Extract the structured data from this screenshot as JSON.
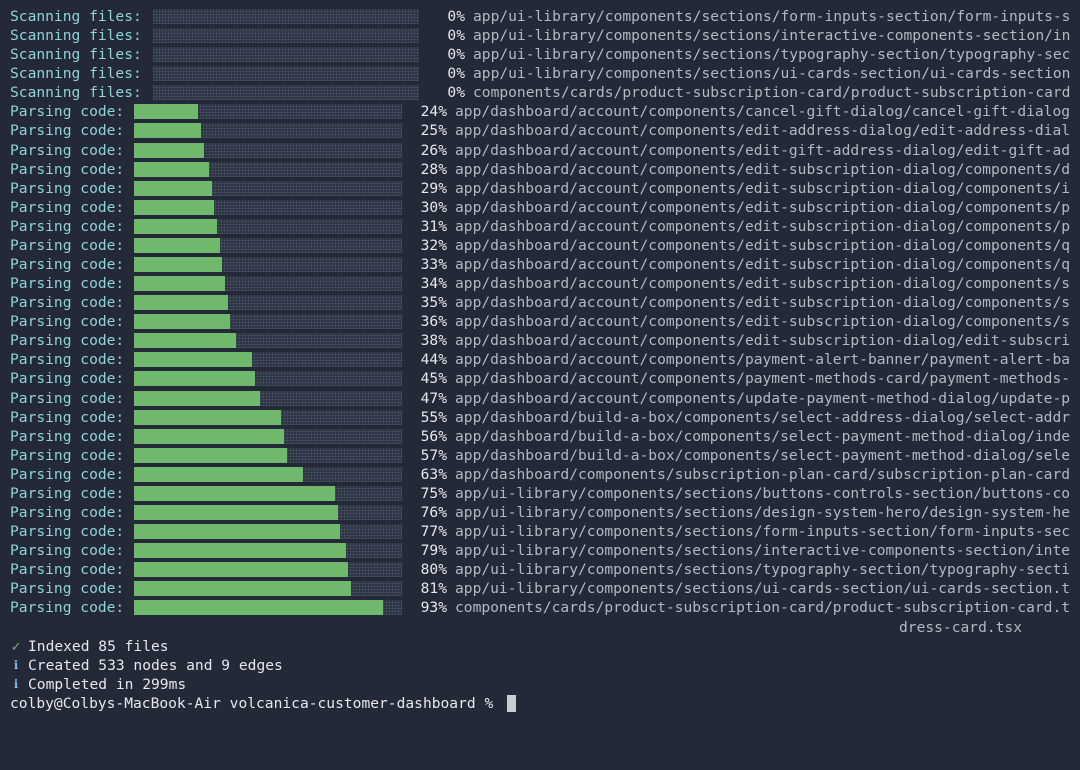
{
  "scan_rows": [
    {
      "label": "Scanning files:",
      "pct": 0,
      "pct_text": "0%",
      "path": "app/ui-library/components/sections/form-inputs-section/form-inputs-s"
    },
    {
      "label": "Scanning files:",
      "pct": 0,
      "pct_text": "0%",
      "path": "app/ui-library/components/sections/interactive-components-section/in"
    },
    {
      "label": "Scanning files:",
      "pct": 0,
      "pct_text": "0%",
      "path": "app/ui-library/components/sections/typography-section/typography-sec"
    },
    {
      "label": "Scanning files:",
      "pct": 0,
      "pct_text": "0%",
      "path": "app/ui-library/components/sections/ui-cards-section/ui-cards-section"
    },
    {
      "label": "Scanning files:",
      "pct": 0,
      "pct_text": "0%",
      "path": "components/cards/product-subscription-card/product-subscription-card"
    }
  ],
  "parse_rows": [
    {
      "label": "Parsing code:",
      "pct": 24,
      "pct_text": "24%",
      "path": "app/dashboard/account/components/cancel-gift-dialog/cancel-gift-dialog"
    },
    {
      "label": "Parsing code:",
      "pct": 25,
      "pct_text": "25%",
      "path": "app/dashboard/account/components/edit-address-dialog/edit-address-dial"
    },
    {
      "label": "Parsing code:",
      "pct": 26,
      "pct_text": "26%",
      "path": "app/dashboard/account/components/edit-gift-address-dialog/edit-gift-ad"
    },
    {
      "label": "Parsing code:",
      "pct": 28,
      "pct_text": "28%",
      "path": "app/dashboard/account/components/edit-subscription-dialog/components/d"
    },
    {
      "label": "Parsing code:",
      "pct": 29,
      "pct_text": "29%",
      "path": "app/dashboard/account/components/edit-subscription-dialog/components/i"
    },
    {
      "label": "Parsing code:",
      "pct": 30,
      "pct_text": "30%",
      "path": "app/dashboard/account/components/edit-subscription-dialog/components/p"
    },
    {
      "label": "Parsing code:",
      "pct": 31,
      "pct_text": "31%",
      "path": "app/dashboard/account/components/edit-subscription-dialog/components/p"
    },
    {
      "label": "Parsing code:",
      "pct": 32,
      "pct_text": "32%",
      "path": "app/dashboard/account/components/edit-subscription-dialog/components/q"
    },
    {
      "label": "Parsing code:",
      "pct": 33,
      "pct_text": "33%",
      "path": "app/dashboard/account/components/edit-subscription-dialog/components/q"
    },
    {
      "label": "Parsing code:",
      "pct": 34,
      "pct_text": "34%",
      "path": "app/dashboard/account/components/edit-subscription-dialog/components/s"
    },
    {
      "label": "Parsing code:",
      "pct": 35,
      "pct_text": "35%",
      "path": "app/dashboard/account/components/edit-subscription-dialog/components/s"
    },
    {
      "label": "Parsing code:",
      "pct": 36,
      "pct_text": "36%",
      "path": "app/dashboard/account/components/edit-subscription-dialog/components/s"
    },
    {
      "label": "Parsing code:",
      "pct": 38,
      "pct_text": "38%",
      "path": "app/dashboard/account/components/edit-subscription-dialog/edit-subscri"
    },
    {
      "label": "Parsing code:",
      "pct": 44,
      "pct_text": "44%",
      "path": "app/dashboard/account/components/payment-alert-banner/payment-alert-ba"
    },
    {
      "label": "Parsing code:",
      "pct": 45,
      "pct_text": "45%",
      "path": "app/dashboard/account/components/payment-methods-card/payment-methods-"
    },
    {
      "label": "Parsing code:",
      "pct": 47,
      "pct_text": "47%",
      "path": "app/dashboard/account/components/update-payment-method-dialog/update-p"
    },
    {
      "label": "Parsing code:",
      "pct": 55,
      "pct_text": "55%",
      "path": "app/dashboard/build-a-box/components/select-address-dialog/select-addr"
    },
    {
      "label": "Parsing code:",
      "pct": 56,
      "pct_text": "56%",
      "path": "app/dashboard/build-a-box/components/select-payment-method-dialog/inde"
    },
    {
      "label": "Parsing code:",
      "pct": 57,
      "pct_text": "57%",
      "path": "app/dashboard/build-a-box/components/select-payment-method-dialog/sele"
    },
    {
      "label": "Parsing code:",
      "pct": 63,
      "pct_text": "63%",
      "path": "app/dashboard/components/subscription-plan-card/subscription-plan-card"
    },
    {
      "label": "Parsing code:",
      "pct": 75,
      "pct_text": "75%",
      "path": "app/ui-library/components/sections/buttons-controls-section/buttons-co"
    },
    {
      "label": "Parsing code:",
      "pct": 76,
      "pct_text": "76%",
      "path": "app/ui-library/components/sections/design-system-hero/design-system-he"
    },
    {
      "label": "Parsing code:",
      "pct": 77,
      "pct_text": "77%",
      "path": "app/ui-library/components/sections/form-inputs-section/form-inputs-sec"
    },
    {
      "label": "Parsing code:",
      "pct": 79,
      "pct_text": "79%",
      "path": "app/ui-library/components/sections/interactive-components-section/inte"
    },
    {
      "label": "Parsing code:",
      "pct": 80,
      "pct_text": "80%",
      "path": "app/ui-library/components/sections/typography-section/typography-secti"
    },
    {
      "label": "Parsing code:",
      "pct": 81,
      "pct_text": "81%",
      "path": "app/ui-library/components/sections/ui-cards-section/ui-cards-section.t"
    },
    {
      "label": "Parsing code:",
      "pct": 93,
      "pct_text": "93%",
      "path": "components/cards/product-subscription-card/product-subscription-card.t"
    }
  ],
  "wrap_tail": "dress-card.tsx",
  "summary": {
    "indexed_icon": "✓",
    "indexed_text": "Indexed 85 files",
    "created_icon": "ℹ",
    "created_text": "Created 533 nodes and 9 edges",
    "completed_icon": "ℹ",
    "completed_text": "Completed in 299ms"
  },
  "prompt": {
    "text": "colby@Colbys-MacBook-Air volcanica-customer-dashboard % "
  },
  "colors": {
    "background": "#232936",
    "label": "#8fd4d9",
    "bar_fill": "#6fb86c",
    "check": "#6fb86c",
    "info": "#7fb4e8"
  }
}
